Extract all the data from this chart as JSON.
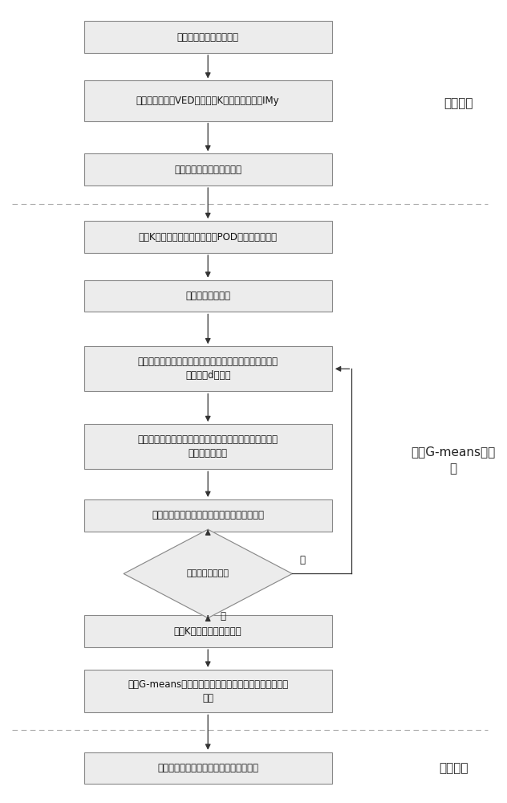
{
  "bg_color": "#ffffff",
  "box_fill": "#ececec",
  "box_edge": "#888888",
  "arrow_color": "#333333",
  "text_color": "#111111",
  "dash_color": "#aaaaaa",
  "label_color": "#222222",
  "texts": {
    "b1": "采集变压器绕组振动信号",
    "b2": "对振动信号进行VED分解得到K个偏差向量函数IMy",
    "b3": "构造信号能量熵和均方根值",
    "b4": "预设K个向量元质心点，变权重POD算法参数初始化",
    "b5": "计算质心点权重值",
    "b6": "更新质心点的位置和距离，并将鱼群根据侦查鱼的位置分\n布划分为d个等级",
    "b7": "更新质心点权重值并根据不同鱼群的权重值确认最终所有\n鱼群的新质心点",
    "b8": "获取质心点的各鱼群最优和全部鱼群的最优值",
    "b9": "输出K个初始向量元质心点",
    "b10": "运行G-means算法迭代确定正常情况和故障情况向量元质\n心点",
    "b11": "最小欧式距离原则实现故障诊断输出结果",
    "d1": "达到最大迭代次数"
  },
  "label_tezhen": "特征提取",
  "label_gaijin": "改进G-means向量\n元",
  "label_guzhang": "故障诊断",
  "yes_text": "是",
  "no_text": "否"
}
